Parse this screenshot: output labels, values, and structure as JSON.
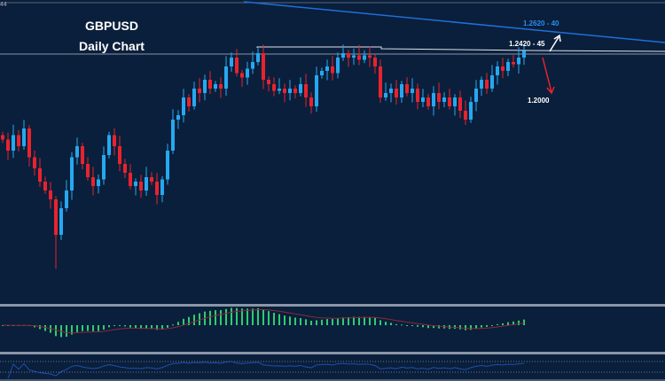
{
  "chart_data": {
    "type": "candlestick",
    "title": "GBPUSD",
    "subtitle": "Daily Chart",
    "corner_label": "44",
    "colors": {
      "up": "#26a8f0",
      "down": "#e8232e",
      "background": "#0a1f3b",
      "trendline": "#1e6fd9",
      "macd_hist": "#2ecc71",
      "macd_signal": "#8b2a3a",
      "rsi": "#1f4fae"
    },
    "closes": [
      1.203,
      1.198,
      1.205,
      1.2,
      1.208,
      1.195,
      1.19,
      1.184,
      1.18,
      1.176,
      1.16,
      1.172,
      1.18,
      1.195,
      1.2,
      1.192,
      1.186,
      1.182,
      1.185,
      1.196,
      1.205,
      1.2,
      1.192,
      1.188,
      1.182,
      1.184,
      1.18,
      1.186,
      1.184,
      1.178,
      1.185,
      1.198,
      1.212,
      1.214,
      1.222,
      1.218,
      1.226,
      1.224,
      1.23,
      1.226,
      1.228,
      1.226,
      1.236,
      1.24,
      1.233,
      1.231,
      1.235,
      1.238,
      1.242,
      1.23,
      1.228,
      1.225,
      1.226,
      1.224,
      1.226,
      1.224,
      1.228,
      1.222,
      1.218,
      1.232,
      1.234,
      1.236,
      1.233,
      1.24,
      1.242,
      1.24,
      1.241,
      1.239,
      1.241,
      1.24,
      1.236,
      1.222,
      1.224,
      1.226,
      1.222,
      1.228,
      1.224,
      1.226,
      1.22,
      1.222,
      1.218,
      1.224,
      1.22,
      1.222,
      1.218,
      1.222,
      1.216,
      1.212,
      1.22,
      1.226,
      1.23,
      1.226,
      1.232,
      1.236,
      1.234,
      1.238,
      1.237,
      1.24,
      1.243
    ],
    "ylim": [
      1.13,
      1.266
    ],
    "resistance_level": 1.242,
    "annotations": {
      "upper_target": "1.2620 - 40",
      "resistance": "1.2420 - 45",
      "lower_target": "1.2000"
    },
    "indicators": [
      "MACD",
      "RSI"
    ]
  }
}
